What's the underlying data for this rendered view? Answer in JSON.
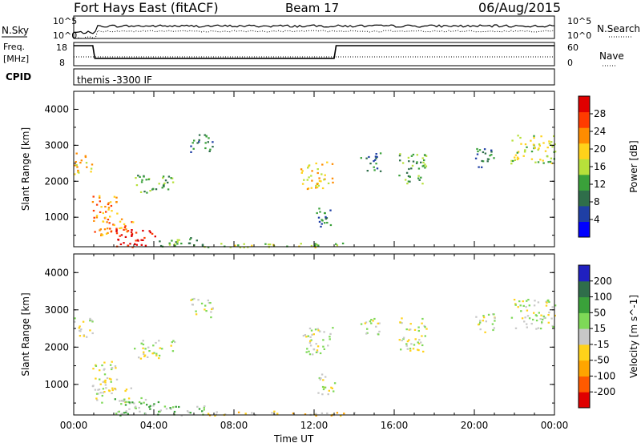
{
  "header": {
    "station": "Fort Hays East (fitACF)",
    "beam": "Beam 17",
    "date": "06/Aug/2015"
  },
  "summary": {
    "nsky_label": "N.Sky",
    "nsearch_label": "N.Search",
    "noise_ticks": [
      "10^5",
      "10^0"
    ],
    "freq_label": [
      "Freq.",
      "[MHz]"
    ],
    "freq_ticks": [
      "18",
      "8"
    ],
    "nave_label": "Nave",
    "nave_ticks": [
      "60",
      "0"
    ],
    "cpid_label": "CPID",
    "cpid_text": "themis -3300 IF",
    "freq_series": [
      {
        "t": 0,
        "mhz": 18
      },
      {
        "t": 0.95,
        "mhz": 18
      },
      {
        "t": 1.05,
        "mhz": 10.5
      },
      {
        "t": 13.0,
        "mhz": 10.5
      },
      {
        "t": 13.1,
        "mhz": 18
      },
      {
        "t": 24,
        "mhz": 18
      }
    ]
  },
  "chart_data": [
    {
      "type": "heatmap",
      "title": "Power",
      "xlabel": "Time UT",
      "ylabel": "Slant Range [km]",
      "xlim": [
        0,
        24
      ],
      "ylim": [
        180,
        4500
      ],
      "x_ticks": [
        "00:00",
        "04:00",
        "08:00",
        "12:00",
        "16:00",
        "20:00",
        "00:00"
      ],
      "y_ticks": [
        "1000",
        "2000",
        "3000",
        "4000"
      ],
      "colorbar": {
        "label": "Power [dB]",
        "ticks": [
          "4",
          "8",
          "12",
          "16",
          "20",
          "24",
          "28"
        ],
        "colors": [
          "#0000ff",
          "#1f3fa5",
          "#2f6e4a",
          "#3aa13a",
          "#b7e03a",
          "#ffd21a",
          "#ff8c00",
          "#ff3b00",
          "#e00000"
        ]
      },
      "regions": [
        {
          "t0": 0.0,
          "t1": 0.9,
          "r0": 2200,
          "r1": 2800,
          "level": 5
        },
        {
          "t0": 0.9,
          "t1": 2.2,
          "r0": 900,
          "r1": 1650,
          "level": 6
        },
        {
          "t0": 1.0,
          "t1": 3.0,
          "r0": 500,
          "r1": 1000,
          "level": 6
        },
        {
          "t0": 2.0,
          "t1": 4.2,
          "r0": 180,
          "r1": 700,
          "level": 8
        },
        {
          "t0": 3.0,
          "t1": 5.0,
          "r0": 1700,
          "r1": 2200,
          "level": 3
        },
        {
          "t0": 4.0,
          "t1": 6.5,
          "r0": 180,
          "r1": 450,
          "level": 3
        },
        {
          "t0": 5.8,
          "t1": 6.9,
          "r0": 2800,
          "r1": 3350,
          "level": 2
        },
        {
          "t0": 11.3,
          "t1": 12.9,
          "r0": 1800,
          "r1": 2550,
          "level": 5
        },
        {
          "t0": 12.1,
          "t1": 13.0,
          "r0": 700,
          "r1": 1300,
          "level": 2
        },
        {
          "t0": 14.3,
          "t1": 15.3,
          "r0": 2300,
          "r1": 2800,
          "level": 2
        },
        {
          "t0": 16.2,
          "t1": 17.6,
          "r0": 1900,
          "r1": 2800,
          "level": 3
        },
        {
          "t0": 20.0,
          "t1": 21.0,
          "r0": 2400,
          "r1": 3000,
          "level": 2
        },
        {
          "t0": 21.8,
          "t1": 24.0,
          "r0": 2500,
          "r1": 3300,
          "level": 4
        },
        {
          "t0": 6.5,
          "t1": 14.0,
          "r0": 180,
          "r1": 300,
          "level": 4
        }
      ]
    },
    {
      "type": "heatmap",
      "title": "Velocity",
      "xlabel": "Time UT",
      "ylabel": "Slant Range [km]",
      "xlim": [
        0,
        24
      ],
      "ylim": [
        180,
        4500
      ],
      "x_ticks": [
        "00:00",
        "04:00",
        "08:00",
        "12:00",
        "16:00",
        "20:00",
        "00:00"
      ],
      "y_ticks": [
        "1000",
        "2000",
        "3000",
        "4000"
      ],
      "colorbar": {
        "label": "Velocity [m s^-1]",
        "ticks": [
          "200",
          "100",
          "50",
          "15",
          "-15",
          "-50",
          "-100",
          "-200"
        ],
        "colors": [
          "#2020c0",
          "#2f6e4a",
          "#3aa13a",
          "#7ed957",
          "#c8c8c8",
          "#ffd21a",
          "#ffa500",
          "#ff5a00",
          "#e00000"
        ]
      },
      "regions": [
        {
          "t0": 0.0,
          "t1": 0.9,
          "r0": 2200,
          "r1": 2800,
          "level": 4
        },
        {
          "t0": 0.9,
          "t1": 2.2,
          "r0": 900,
          "r1": 1650,
          "level": 4
        },
        {
          "t0": 1.0,
          "t1": 3.0,
          "r0": 500,
          "r1": 1000,
          "level": 4
        },
        {
          "t0": 2.0,
          "t1": 4.2,
          "r0": 180,
          "r1": 700,
          "level": 3
        },
        {
          "t0": 3.0,
          "t1": 5.0,
          "r0": 1700,
          "r1": 2200,
          "level": 4
        },
        {
          "t0": 4.0,
          "t1": 6.5,
          "r0": 180,
          "r1": 450,
          "level": 3
        },
        {
          "t0": 5.8,
          "t1": 6.9,
          "r0": 2800,
          "r1": 3350,
          "level": 4
        },
        {
          "t0": 11.3,
          "t1": 12.9,
          "r0": 1800,
          "r1": 2550,
          "level": 4
        },
        {
          "t0": 12.1,
          "t1": 13.0,
          "r0": 700,
          "r1": 1300,
          "level": 4
        },
        {
          "t0": 14.3,
          "t1": 15.3,
          "r0": 2300,
          "r1": 2800,
          "level": 4
        },
        {
          "t0": 16.2,
          "t1": 17.6,
          "r0": 1900,
          "r1": 2800,
          "level": 4
        },
        {
          "t0": 20.0,
          "t1": 21.0,
          "r0": 2400,
          "r1": 3000,
          "level": 4
        },
        {
          "t0": 21.8,
          "t1": 24.0,
          "r0": 2500,
          "r1": 3300,
          "level": 4
        },
        {
          "t0": 6.5,
          "t1": 14.0,
          "r0": 180,
          "r1": 300,
          "level": 5
        }
      ]
    }
  ]
}
